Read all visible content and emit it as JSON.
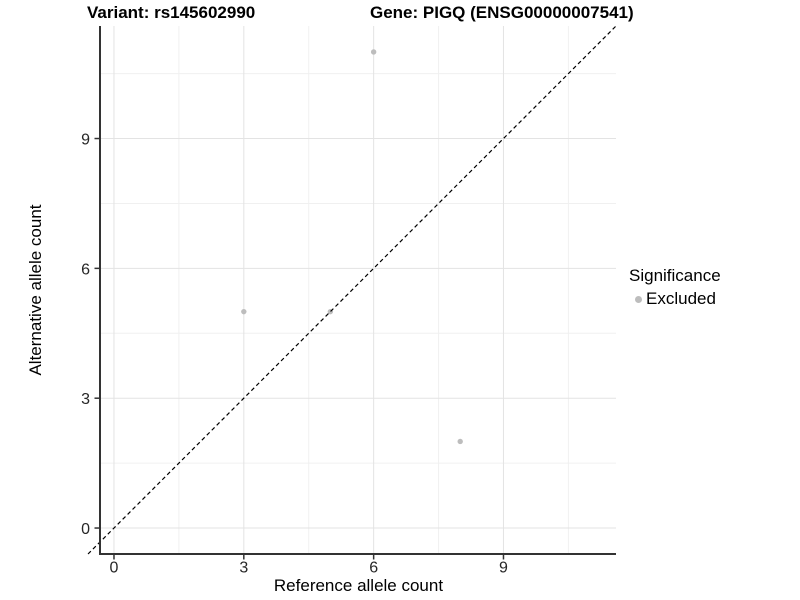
{
  "chart_data": {
    "type": "scatter",
    "title_left": "Variant: rs145602990",
    "title_right": "Gene: PIGQ (ENSG00000007541)",
    "xlabel": "Reference allele count",
    "ylabel": "Alternative allele count",
    "xlim": [
      -0.3,
      11.6
    ],
    "ylim": [
      -0.6,
      11.6
    ],
    "x_ticks": [
      0,
      3,
      6,
      9
    ],
    "y_ticks": [
      0,
      3,
      6,
      9
    ],
    "x_minor_ticks": [
      1.5,
      4.5,
      7.5,
      10.5
    ],
    "y_minor_ticks": [
      1.5,
      4.5,
      7.5,
      10.5
    ],
    "grid": "on",
    "legend_position": "right",
    "series": [
      {
        "name": "Excluded",
        "color": "#bdbdbd",
        "points": [
          [
            6,
            11
          ],
          [
            3,
            5
          ],
          [
            5,
            5
          ],
          [
            8,
            2
          ]
        ]
      }
    ],
    "reference_line": {
      "slope": 1,
      "intercept": 0,
      "style": "dashed",
      "color": "#000000"
    },
    "legend": {
      "title": "Significance",
      "items": [
        {
          "label": "Excluded",
          "color": "#bdbdbd"
        }
      ]
    },
    "colors": {
      "point": "#bdbdbd",
      "grid_major": "#e3e3e3",
      "grid_minor": "#f0f0f0",
      "axis_line": "#333333",
      "tick_label": "#262626",
      "reference_line": "#000000"
    }
  }
}
